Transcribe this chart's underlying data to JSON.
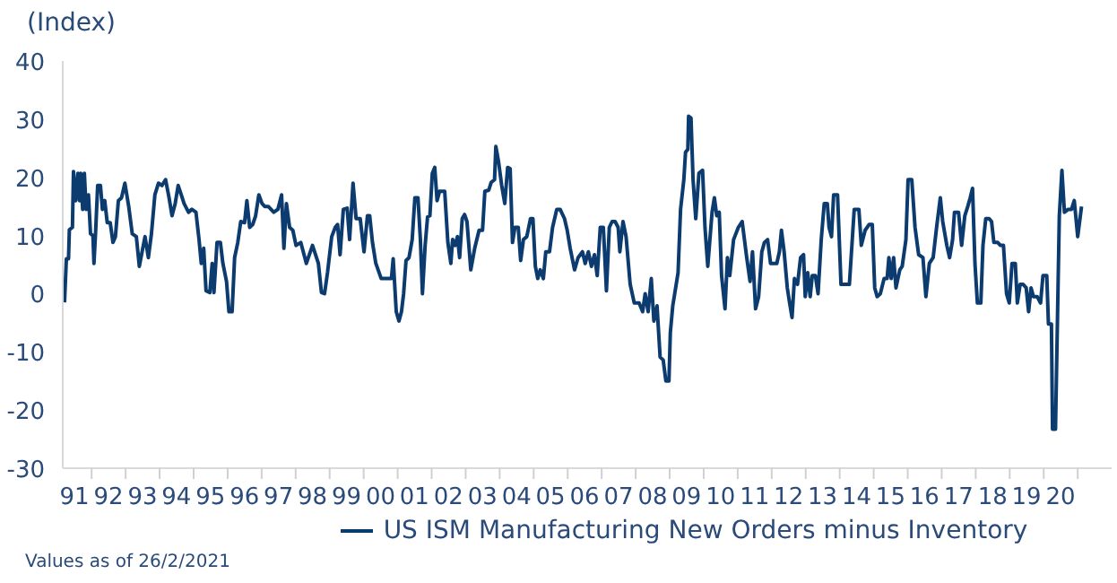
{
  "chart_data": {
    "type": "line",
    "ylabel": "(Index)",
    "annotations": [
      "Values as of 26/2/2021"
    ],
    "xlim": [
      "1991-02-25",
      "2021-12-31"
    ],
    "ylim": [
      -30,
      40
    ],
    "yticks": [
      -30,
      -20,
      -10,
      0,
      10,
      20,
      30,
      40
    ],
    "xticks": [
      {
        "value": "1991-07",
        "label": "91"
      },
      {
        "value": "1992",
        "label": null
      },
      {
        "value": "1992-07",
        "label": "92"
      },
      {
        "value": "1993",
        "label": null
      },
      {
        "value": "1993-07",
        "label": "93"
      },
      {
        "value": "1994",
        "label": null
      },
      {
        "value": "1994-07",
        "label": "94"
      },
      {
        "value": "1995",
        "label": null
      },
      {
        "value": "1995-07",
        "label": "95"
      },
      {
        "value": "1996",
        "label": null
      },
      {
        "value": "1996-07",
        "label": "96"
      },
      {
        "value": "1997",
        "label": null
      },
      {
        "value": "1997-07",
        "label": "97"
      },
      {
        "value": "1998",
        "label": null
      },
      {
        "value": "1998-07",
        "label": "98"
      },
      {
        "value": "1999",
        "label": null
      },
      {
        "value": "1999-07",
        "label": "99"
      },
      {
        "value": "2000",
        "label": null
      },
      {
        "value": "2000-07",
        "label": "00"
      },
      {
        "value": "2001",
        "label": null
      },
      {
        "value": "2001-07",
        "label": "01"
      },
      {
        "value": "2002",
        "label": null
      },
      {
        "value": "2002-07",
        "label": "02"
      },
      {
        "value": "2003",
        "label": null
      },
      {
        "value": "2003-07",
        "label": "03"
      },
      {
        "value": "2004",
        "label": null
      },
      {
        "value": "2004-07",
        "label": "04"
      },
      {
        "value": "2005",
        "label": null
      },
      {
        "value": "2005-07",
        "label": "05"
      },
      {
        "value": "2006",
        "label": null
      },
      {
        "value": "2006-07",
        "label": "06"
      },
      {
        "value": "2007",
        "label": null
      },
      {
        "value": "2007-07",
        "label": "07"
      },
      {
        "value": "2008",
        "label": null
      },
      {
        "value": "2008-07",
        "label": "08"
      },
      {
        "value": "2009",
        "label": null
      },
      {
        "value": "2009-07",
        "label": "09"
      },
      {
        "value": "2010",
        "label": null
      },
      {
        "value": "2010-07",
        "label": "10"
      },
      {
        "value": "2011",
        "label": null
      },
      {
        "value": "2011-07",
        "label": "11"
      },
      {
        "value": "2012",
        "label": null
      },
      {
        "value": "2012-07",
        "label": "12"
      },
      {
        "value": "2013",
        "label": null
      },
      {
        "value": "2013-07",
        "label": "13"
      },
      {
        "value": "2014",
        "label": null
      },
      {
        "value": "2014-07",
        "label": "14"
      },
      {
        "value": "2015",
        "label": null
      },
      {
        "value": "2015-07",
        "label": "15"
      },
      {
        "value": "2016",
        "label": null
      },
      {
        "value": "2016-07",
        "label": "16"
      },
      {
        "value": "2017",
        "label": null
      },
      {
        "value": "2017-07",
        "label": "17"
      },
      {
        "value": "2018",
        "label": null
      },
      {
        "value": "2018-07",
        "label": "18"
      },
      {
        "value": "2019",
        "label": null
      },
      {
        "value": "2019-07",
        "label": "19"
      },
      {
        "value": "2020",
        "label": null
      },
      {
        "value": "2020-07",
        "label": "20"
      },
      {
        "value": "2021",
        "label": null
      }
    ],
    "legend": "bottom",
    "marker": "none",
    "line_style": "solid",
    "series": [
      {
        "name": "US ISM Manufacturing New Orders minus Inventory",
        "color": "#0c3b6f",
        "x": [
          "1991-03-16",
          "1991-04-05",
          "1991-04-28",
          "1991-05-07",
          "1991-06-09",
          "1991-06-20",
          "1991-07-15",
          "1991-08-07",
          "1991-08-25",
          "1991-09-06",
          "1991-09-27",
          "1991-10-15",
          "1991-11-03",
          "1991-11-28",
          "1991-12-20",
          "1992-01-15",
          "1992-01-26",
          "1992-02-14",
          "1992-03-06",
          "1992-04-05",
          "1992-04-26",
          "1992-05-21",
          "1992-06-17",
          "1992-07-19",
          "1992-08-18",
          "1992-09-13",
          "1992-10-15",
          "1992-11-18",
          "1992-12-24",
          "1993-02-03",
          "1993-03-13",
          "1993-04-26",
          "1993-05-28",
          "1993-06-27",
          "1993-07-28",
          "1993-09-02",
          "1993-10-05",
          "1993-11-11",
          "1993-12-20",
          "1994-01-26",
          "1994-03-06",
          "1994-04-12",
          "1994-05-14",
          "1994-06-17",
          "1994-07-19",
          "1994-08-21",
          "1994-09-20",
          "1994-11-07",
          "1994-12-13",
          "1995-01-26",
          "1995-02-28",
          "1995-03-24",
          "1995-04-19",
          "1995-05-14",
          "1995-06-24",
          "1995-07-19",
          "1995-08-07",
          "1995-09-09",
          "1995-10-15",
          "1995-11-11",
          "1995-12-20",
          "1996-01-15",
          "1996-02-18",
          "1996-03-16",
          "1996-04-19",
          "1996-05-21",
          "1996-07-01",
          "1996-07-26",
          "1996-08-25",
          "1996-09-27",
          "1996-10-28",
          "1996-12-02",
          "1997-01-05",
          "1997-02-03",
          "1997-03-13",
          "1997-05-11",
          "1997-06-24",
          "1997-08-03",
          "1997-08-28",
          "1997-09-24",
          "1997-10-28",
          "1997-12-02",
          "1998-01-05",
          "1998-02-25",
          "1998-04-26",
          "1998-07-01",
          "1998-09-02",
          "1998-10-05",
          "1998-11-07",
          "1998-12-09",
          "1999-01-23",
          "1999-03-02",
          "1999-03-27",
          "1999-04-23",
          "1999-05-28",
          "1999-07-08",
          "1999-08-03",
          "1999-09-09",
          "1999-10-12",
          "1999-11-25",
          "2000-01-05",
          "2000-02-11",
          "2000-03-06",
          "2000-04-05",
          "2000-05-11",
          "2000-07-08",
          "2000-09-09",
          "2000-10-26",
          "2000-11-14",
          "2000-12-17",
          "2001-01-15",
          "2001-02-11",
          "2001-03-06",
          "2001-04-01",
          "2001-05-03",
          "2001-06-06",
          "2001-07-05",
          "2001-08-07",
          "2001-09-02",
          "2001-09-24",
          "2001-10-23",
          "2001-11-18",
          "2001-12-13",
          "2002-01-08",
          "2002-02-03",
          "2002-02-28",
          "2002-03-27",
          "2002-05-21",
          "2002-06-24",
          "2002-07-26",
          "2002-08-14",
          "2002-09-09",
          "2002-10-05",
          "2002-10-28",
          "2002-11-25",
          "2002-12-20",
          "2003-01-15",
          "2003-02-25",
          "2003-04-08",
          "2003-05-25",
          "2003-07-01",
          "2003-07-26",
          "2003-09-06",
          "2003-10-01",
          "2003-11-07",
          "2003-11-21",
          "2003-12-20",
          "2004-01-23",
          "2004-02-25",
          "2004-03-27",
          "2004-04-23",
          "2004-05-18",
          "2004-06-13",
          "2004-07-19",
          "2004-08-14",
          "2004-09-13",
          "2004-10-19",
          "2004-11-28",
          "2004-12-24",
          "2005-01-19",
          "2005-02-14",
          "2005-03-13",
          "2005-04-15",
          "2005-05-11",
          "2005-06-20",
          "2005-07-23",
          "2005-09-06",
          "2005-10-12",
          "2005-11-28",
          "2005-12-27",
          "2006-01-28",
          "2006-03-16",
          "2006-04-23",
          "2006-06-09",
          "2006-07-08",
          "2006-08-11",
          "2006-09-13",
          "2006-10-15",
          "2006-11-14",
          "2006-12-17",
          "2007-01-19",
          "2007-02-21",
          "2007-03-24",
          "2007-04-23",
          "2007-05-25",
          "2007-06-27",
          "2007-07-15",
          "2007-08-18",
          "2007-09-20",
          "2007-11-03",
          "2007-12-17",
          "2008-02-07",
          "2008-03-16",
          "2008-04-12",
          "2008-05-14",
          "2008-06-17",
          "2008-07-15",
          "2008-08-18",
          "2008-09-20",
          "2008-10-23",
          "2008-11-21",
          "2008-12-24",
          "2009-01-08",
          "2009-02-03",
          "2009-04-01",
          "2009-04-28",
          "2009-06-02",
          "2009-06-20",
          "2009-07-15",
          "2009-07-23",
          "2009-08-18",
          "2009-09-09",
          "2009-10-08",
          "2009-11-11",
          "2009-12-20",
          "2010-01-15",
          "2010-02-14",
          "2010-04-01",
          "2010-04-26",
          "2010-05-21",
          "2010-06-17",
          "2010-07-12",
          "2010-08-18",
          "2010-09-13",
          "2010-10-08",
          "2010-11-18",
          "2011-01-08",
          "2011-02-18",
          "2011-04-08",
          "2011-05-14",
          "2011-06-09",
          "2011-07-12",
          "2011-08-14",
          "2011-09-17",
          "2011-10-15",
          "2011-11-18",
          "2011-12-20",
          "2012-01-23",
          "2012-02-25",
          "2012-03-24",
          "2012-04-15",
          "2012-05-14",
          "2012-06-17",
          "2012-07-12",
          "2012-08-07",
          "2012-09-02",
          "2012-10-05",
          "2012-11-07",
          "2012-12-09",
          "2012-12-27",
          "2013-01-23",
          "2013-02-18",
          "2013-03-13",
          "2013-04-15",
          "2013-05-14",
          "2013-06-17",
          "2013-07-19",
          "2013-08-21",
          "2013-09-09",
          "2013-10-05",
          "2013-10-28",
          "2013-12-09",
          "2014-01-15",
          "2014-03-02",
          "2014-04-15",
          "2014-06-06",
          "2014-07-26",
          "2014-08-21",
          "2014-10-01",
          "2014-11-14",
          "2014-12-17",
          "2015-01-12",
          "2015-02-07",
          "2015-03-13",
          "2015-04-23",
          "2015-05-25",
          "2015-06-13",
          "2015-07-08",
          "2015-08-03",
          "2015-08-28",
          "2015-10-08",
          "2015-11-03",
          "2015-12-13",
          "2016-01-05",
          "2016-02-14",
          "2016-03-20",
          "2016-04-28",
          "2016-06-13",
          "2016-07-15",
          "2016-08-21",
          "2016-10-01",
          "2016-11-07",
          "2016-12-17",
          "2017-01-12",
          "2017-02-25",
          "2017-03-27",
          "2017-04-28",
          "2017-05-18",
          "2017-07-01",
          "2017-08-03",
          "2017-09-06",
          "2017-10-08",
          "2017-11-03",
          "2017-11-28",
          "2017-12-24",
          "2018-01-19",
          "2018-02-25",
          "2018-03-20",
          "2018-04-19",
          "2018-05-25",
          "2018-06-20",
          "2018-07-15",
          "2018-08-25",
          "2018-09-24",
          "2018-10-26",
          "2018-11-28",
          "2018-12-27",
          "2019-01-26",
          "2019-03-02",
          "2019-03-24",
          "2019-04-23",
          "2019-05-25",
          "2019-06-27",
          "2019-07-23",
          "2019-08-18",
          "2019-09-13",
          "2019-10-23",
          "2019-11-28",
          "2019-12-24",
          "2020-02-03",
          "2020-02-21",
          "2020-03-24",
          "2020-04-05",
          "2020-05-07",
          "2020-06-17",
          "2020-07-15",
          "2020-08-11",
          "2020-09-20",
          "2020-10-26",
          "2020-11-25",
          "2021-01-01",
          "2021-02-11"
        ],
        "values": [
          -1.5,
          6,
          6,
          11,
          11.4,
          21,
          16,
          20.7,
          16,
          20.7,
          14.5,
          20.7,
          14.5,
          17,
          10.3,
          10,
          5.2,
          11,
          18.6,
          18.6,
          14.5,
          16,
          12.2,
          12.2,
          8.8,
          9.8,
          16,
          16.5,
          19,
          15,
          10.3,
          9.8,
          4.7,
          7.2,
          9.8,
          6.2,
          10.3,
          17,
          19,
          18.6,
          19.6,
          16.5,
          13.4,
          15.5,
          18.6,
          17,
          15.5,
          14,
          14.5,
          14,
          9.3,
          5.2,
          7.8,
          0.5,
          0.2,
          5.2,
          0.2,
          8.8,
          8.8,
          5.2,
          2.1,
          -3.1,
          -3.1,
          6.2,
          8.8,
          12.4,
          12.2,
          16,
          11.4,
          11.9,
          13.4,
          17,
          15.5,
          15,
          15,
          14,
          14.5,
          17,
          7.8,
          15.5,
          11.4,
          10.9,
          8.3,
          8.8,
          5.2,
          8.3,
          5.2,
          0.2,
          0,
          3.6,
          9.8,
          11.4,
          11.9,
          6.7,
          14.5,
          14.7,
          9.3,
          19,
          12.9,
          12.9,
          7.2,
          13.4,
          13.4,
          8.8,
          5.2,
          2.6,
          2.6,
          2.6,
          6,
          -3.1,
          -4.7,
          -3.1,
          0,
          5.7,
          6.2,
          9.3,
          16.5,
          16.5,
          9.3,
          0,
          8.3,
          13.2,
          13.4,
          20.7,
          21.7,
          16,
          17.6,
          17.6,
          8.8,
          5.2,
          9.3,
          8.3,
          9.8,
          6.2,
          12.9,
          13.6,
          12.4,
          4.1,
          7.8,
          10.9,
          10.9,
          17.6,
          17.8,
          19.1,
          19.6,
          25.3,
          22.7,
          18.6,
          15.5,
          21.7,
          21.5,
          8.8,
          11.4,
          11.4,
          5.7,
          9.3,
          9.8,
          12.9,
          12.9,
          4.7,
          2.6,
          4.1,
          2.6,
          7.2,
          7.2,
          11.4,
          14.5,
          14.5,
          12.9,
          10.9,
          7.8,
          4.1,
          6.2,
          7.2,
          5.2,
          7.2,
          4.7,
          6.7,
          3.1,
          11.4,
          11.4,
          0.5,
          11.4,
          12.4,
          12.4,
          11.4,
          7.2,
          12.4,
          9.8,
          1.6,
          -1.6,
          -1.6,
          -3.1,
          0,
          -3.1,
          2.6,
          -4.7,
          -2.1,
          -10.9,
          -11.4,
          -15,
          -15,
          -6.7,
          -2.1,
          3.6,
          14.5,
          19.6,
          24.3,
          24.8,
          30.5,
          30.2,
          19.6,
          12.9,
          20.7,
          21.2,
          11.4,
          4.7,
          14,
          16.5,
          13.4,
          14,
          3.1,
          -2.6,
          6.2,
          3.1,
          9.3,
          11.4,
          12.4,
          6.2,
          2.1,
          7.2,
          -2.6,
          -0.5,
          7.2,
          8.8,
          9.3,
          5.2,
          5.2,
          5.2,
          7.2,
          10.9,
          7.2,
          1,
          -1.6,
          -4.1,
          2.6,
          1.6,
          6.2,
          6.7,
          -0.5,
          3.6,
          -0.5,
          3.1,
          3.1,
          0,
          9.3,
          15.5,
          15.5,
          11.4,
          9.8,
          17,
          17,
          1.6,
          1.6,
          1.6,
          14.5,
          14.5,
          8.3,
          10.9,
          11.9,
          11.9,
          1,
          -0.5,
          0,
          2.6,
          2.6,
          6.2,
          2.6,
          6.2,
          1,
          4.1,
          4.7,
          9.3,
          19.6,
          19.6,
          11.4,
          6.7,
          6.2,
          -0.5,
          5.2,
          6.2,
          11.4,
          16.5,
          12.4,
          8.3,
          6.2,
          9.3,
          14,
          14,
          8.3,
          13.4,
          15,
          16.5,
          18.1,
          5.2,
          -1.6,
          -1.6,
          8.3,
          12.9,
          12.9,
          12.4,
          8.8,
          8.8,
          8.3,
          8.3,
          0,
          -1.6,
          5.2,
          5.2,
          -1.6,
          1.6,
          1.6,
          1,
          -3.1,
          1,
          -0.5,
          -0.5,
          -1.6,
          3.1,
          3.1,
          -5.2,
          -5.2,
          -23.3,
          -23.3,
          13.4,
          21.2,
          14,
          14.5,
          14.5,
          16,
          9.8,
          15
        ]
      }
    ]
  }
}
